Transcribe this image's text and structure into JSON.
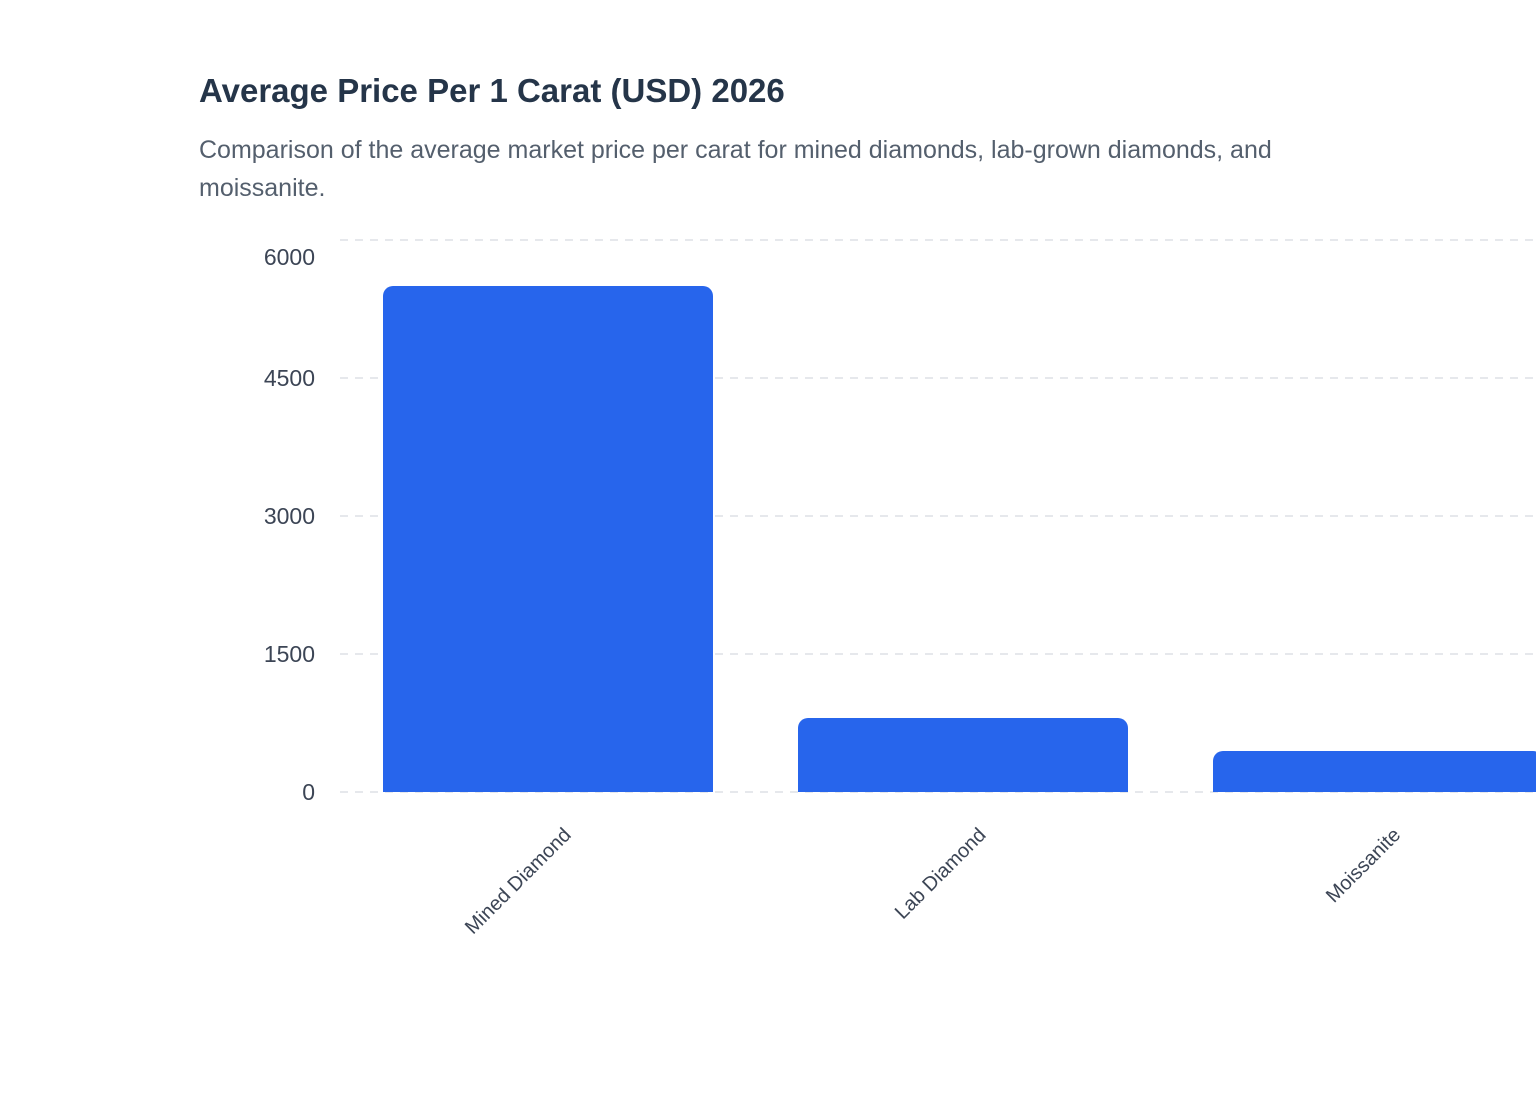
{
  "header": {
    "title": "Average Price Per 1 Carat (USD) 2026",
    "subtitle_line1": "Comparison of the average market price per carat for mined diamonds, lab-grown diamonds, and",
    "subtitle_line2": "moissanite."
  },
  "chart_data": {
    "type": "bar",
    "title": "Average Price Per 1 Carat (USD) 2026",
    "subtitle": "Comparison of the average market price per carat for mined diamonds, lab-grown diamonds, and moissanite.",
    "categories": [
      "Mined Diamond",
      "Lab Diamond",
      "Moissanite"
    ],
    "values": [
      5500,
      800,
      450
    ],
    "xlabel": "",
    "ylabel": "",
    "ylim": [
      0,
      6000
    ],
    "yticks": [
      0,
      1500,
      3000,
      4500,
      6000
    ],
    "grid": "horizontal dashed",
    "legend": "none",
    "bar_color": "#2765ec",
    "x_tick_rotation_deg": -45,
    "unit": "USD per 1 carat"
  }
}
